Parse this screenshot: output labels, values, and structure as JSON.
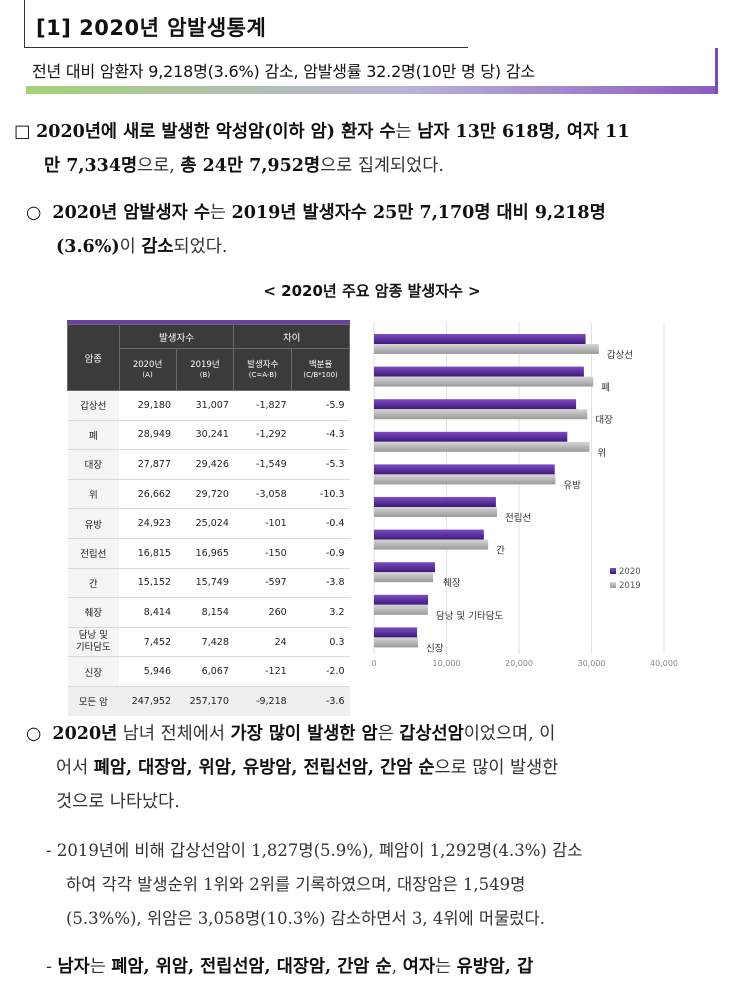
{
  "section": {
    "title": "[1]  2020년 암발생통계",
    "summary": "전년 대비 암환자 9,218명(3.6%) 감소, 암발생률 32.2명(10만 명 당) 감소"
  },
  "para1": {
    "marker": "□",
    "line1_a": "2020년에 새로 발생한 악성암(이하 암) 환자 수",
    "line1_b": "는 ",
    "line1_c": "남자 13만 618명, 여자 11",
    "line2_a": "만 7,334명",
    "line2_b": "으로, ",
    "line2_c": "총 24만 7,952명",
    "line2_d": "으로 집계되었다."
  },
  "para2": {
    "marker": "○",
    "line1_a": "2020년 암발생자 수",
    "line1_b": "는 ",
    "line1_c": "2019년 발생자수 25만 7,170명 대비 9,218명",
    "line2_a": "(3.6%)",
    "line2_b": "이 ",
    "line2_c": "감소",
    "line2_d": "되었다."
  },
  "chart_caption": "< 2020년 주요 암종 발생자수 >",
  "table": {
    "header_group1": "발생자수",
    "header_group2": "차이",
    "col_cancer": "암종",
    "col_2020": "2020년",
    "col_2020_sub": "(A)",
    "col_2019": "2019년",
    "col_2019_sub": "(B)",
    "col_diff": "발생자수",
    "col_diff_sub": "(C=A-B)",
    "col_pct": "백분율",
    "col_pct_sub": "(C/B*100)",
    "rows": [
      {
        "name": "갑상선",
        "y2020": "29,180",
        "y2019": "31,007",
        "diff": "-1,827",
        "pct": "-5.9"
      },
      {
        "name": "폐",
        "y2020": "28,949",
        "y2019": "30,241",
        "diff": "-1,292",
        "pct": "-4.3"
      },
      {
        "name": "대장",
        "y2020": "27,877",
        "y2019": "29,426",
        "diff": "-1,549",
        "pct": "-5.3"
      },
      {
        "name": "위",
        "y2020": "26,662",
        "y2019": "29,720",
        "diff": "-3,058",
        "pct": "-10.3"
      },
      {
        "name": "유방",
        "y2020": "24,923",
        "y2019": "25,024",
        "diff": "-101",
        "pct": "-0.4"
      },
      {
        "name": "전립선",
        "y2020": "16,815",
        "y2019": "16,965",
        "diff": "-150",
        "pct": "-0.9"
      },
      {
        "name": "간",
        "y2020": "15,152",
        "y2019": "15,749",
        "diff": "-597",
        "pct": "-3.8"
      },
      {
        "name": "췌장",
        "y2020": "8,414",
        "y2019": "8,154",
        "diff": "260",
        "pct": "3.2"
      },
      {
        "name_line1": "담낭 및",
        "name_line2": "기타담도",
        "y2020": "7,452",
        "y2019": "7,428",
        "diff": "24",
        "pct": "0.3"
      },
      {
        "name": "신장",
        "y2020": "5,946",
        "y2019": "6,067",
        "diff": "-121",
        "pct": "-2.0"
      },
      {
        "name": "모든 암",
        "y2020": "247,952",
        "y2019": "257,170",
        "diff": "-9,218",
        "pct": "-3.6"
      }
    ]
  },
  "chart_data": {
    "type": "bar",
    "orientation": "horizontal",
    "title": "",
    "categories": [
      "갑상선",
      "폐",
      "대장",
      "위",
      "유방",
      "전립선",
      "간",
      "췌장",
      "담낭 및 기타담도",
      "신장"
    ],
    "series": [
      {
        "name": "2020",
        "values": [
          29180,
          28949,
          27877,
          26662,
          24923,
          16815,
          15152,
          8414,
          7452,
          5946
        ],
        "color": "#5b2a9c"
      },
      {
        "name": "2019",
        "values": [
          31007,
          30241,
          29426,
          29720,
          25024,
          16965,
          15749,
          8154,
          7428,
          6067
        ],
        "color": "#a9a9a9"
      }
    ],
    "xlim": [
      0,
      40000
    ],
    "xticks": [
      "0",
      "10,000",
      "20,000",
      "30,000",
      "40,000"
    ],
    "legend": "right"
  },
  "para3": {
    "marker": "○",
    "line1_a": "2020년",
    "line1_b": " 남녀 전체에서 ",
    "line1_c": "가장 많이 발생한 암",
    "line1_d": "은 ",
    "line1_e": "갑상선암",
    "line1_f": "이었으며, 이",
    "line2_a": "어서 ",
    "line2_b": "폐암, 대장암, 위암, 유방암, 전립선암, 간암 순",
    "line2_c": "으로 많이 발생한",
    "line3": "것으로 나타났다."
  },
  "para4": {
    "line1": "- 2019년에 비해 갑상선암이 1,827명(5.9%), 폐암이 1,292명(4.3%) 감소",
    "line2": "하여 각각 발생순위 1위와 2위를 기록하였으며, 대장암은 1,549명",
    "line3": "(5.3%%), 위암은 3,058명(10.3%) 감소하면서 3, 4위에 머물렀다."
  },
  "para5": {
    "dash": "- ",
    "a": "남자",
    "b": "는 ",
    "c": "폐암, 위암, 전립선암, 대장암, 간암 순",
    "d": ", ",
    "e": "여자",
    "f": "는 ",
    "g": "유방암, 갑"
  }
}
